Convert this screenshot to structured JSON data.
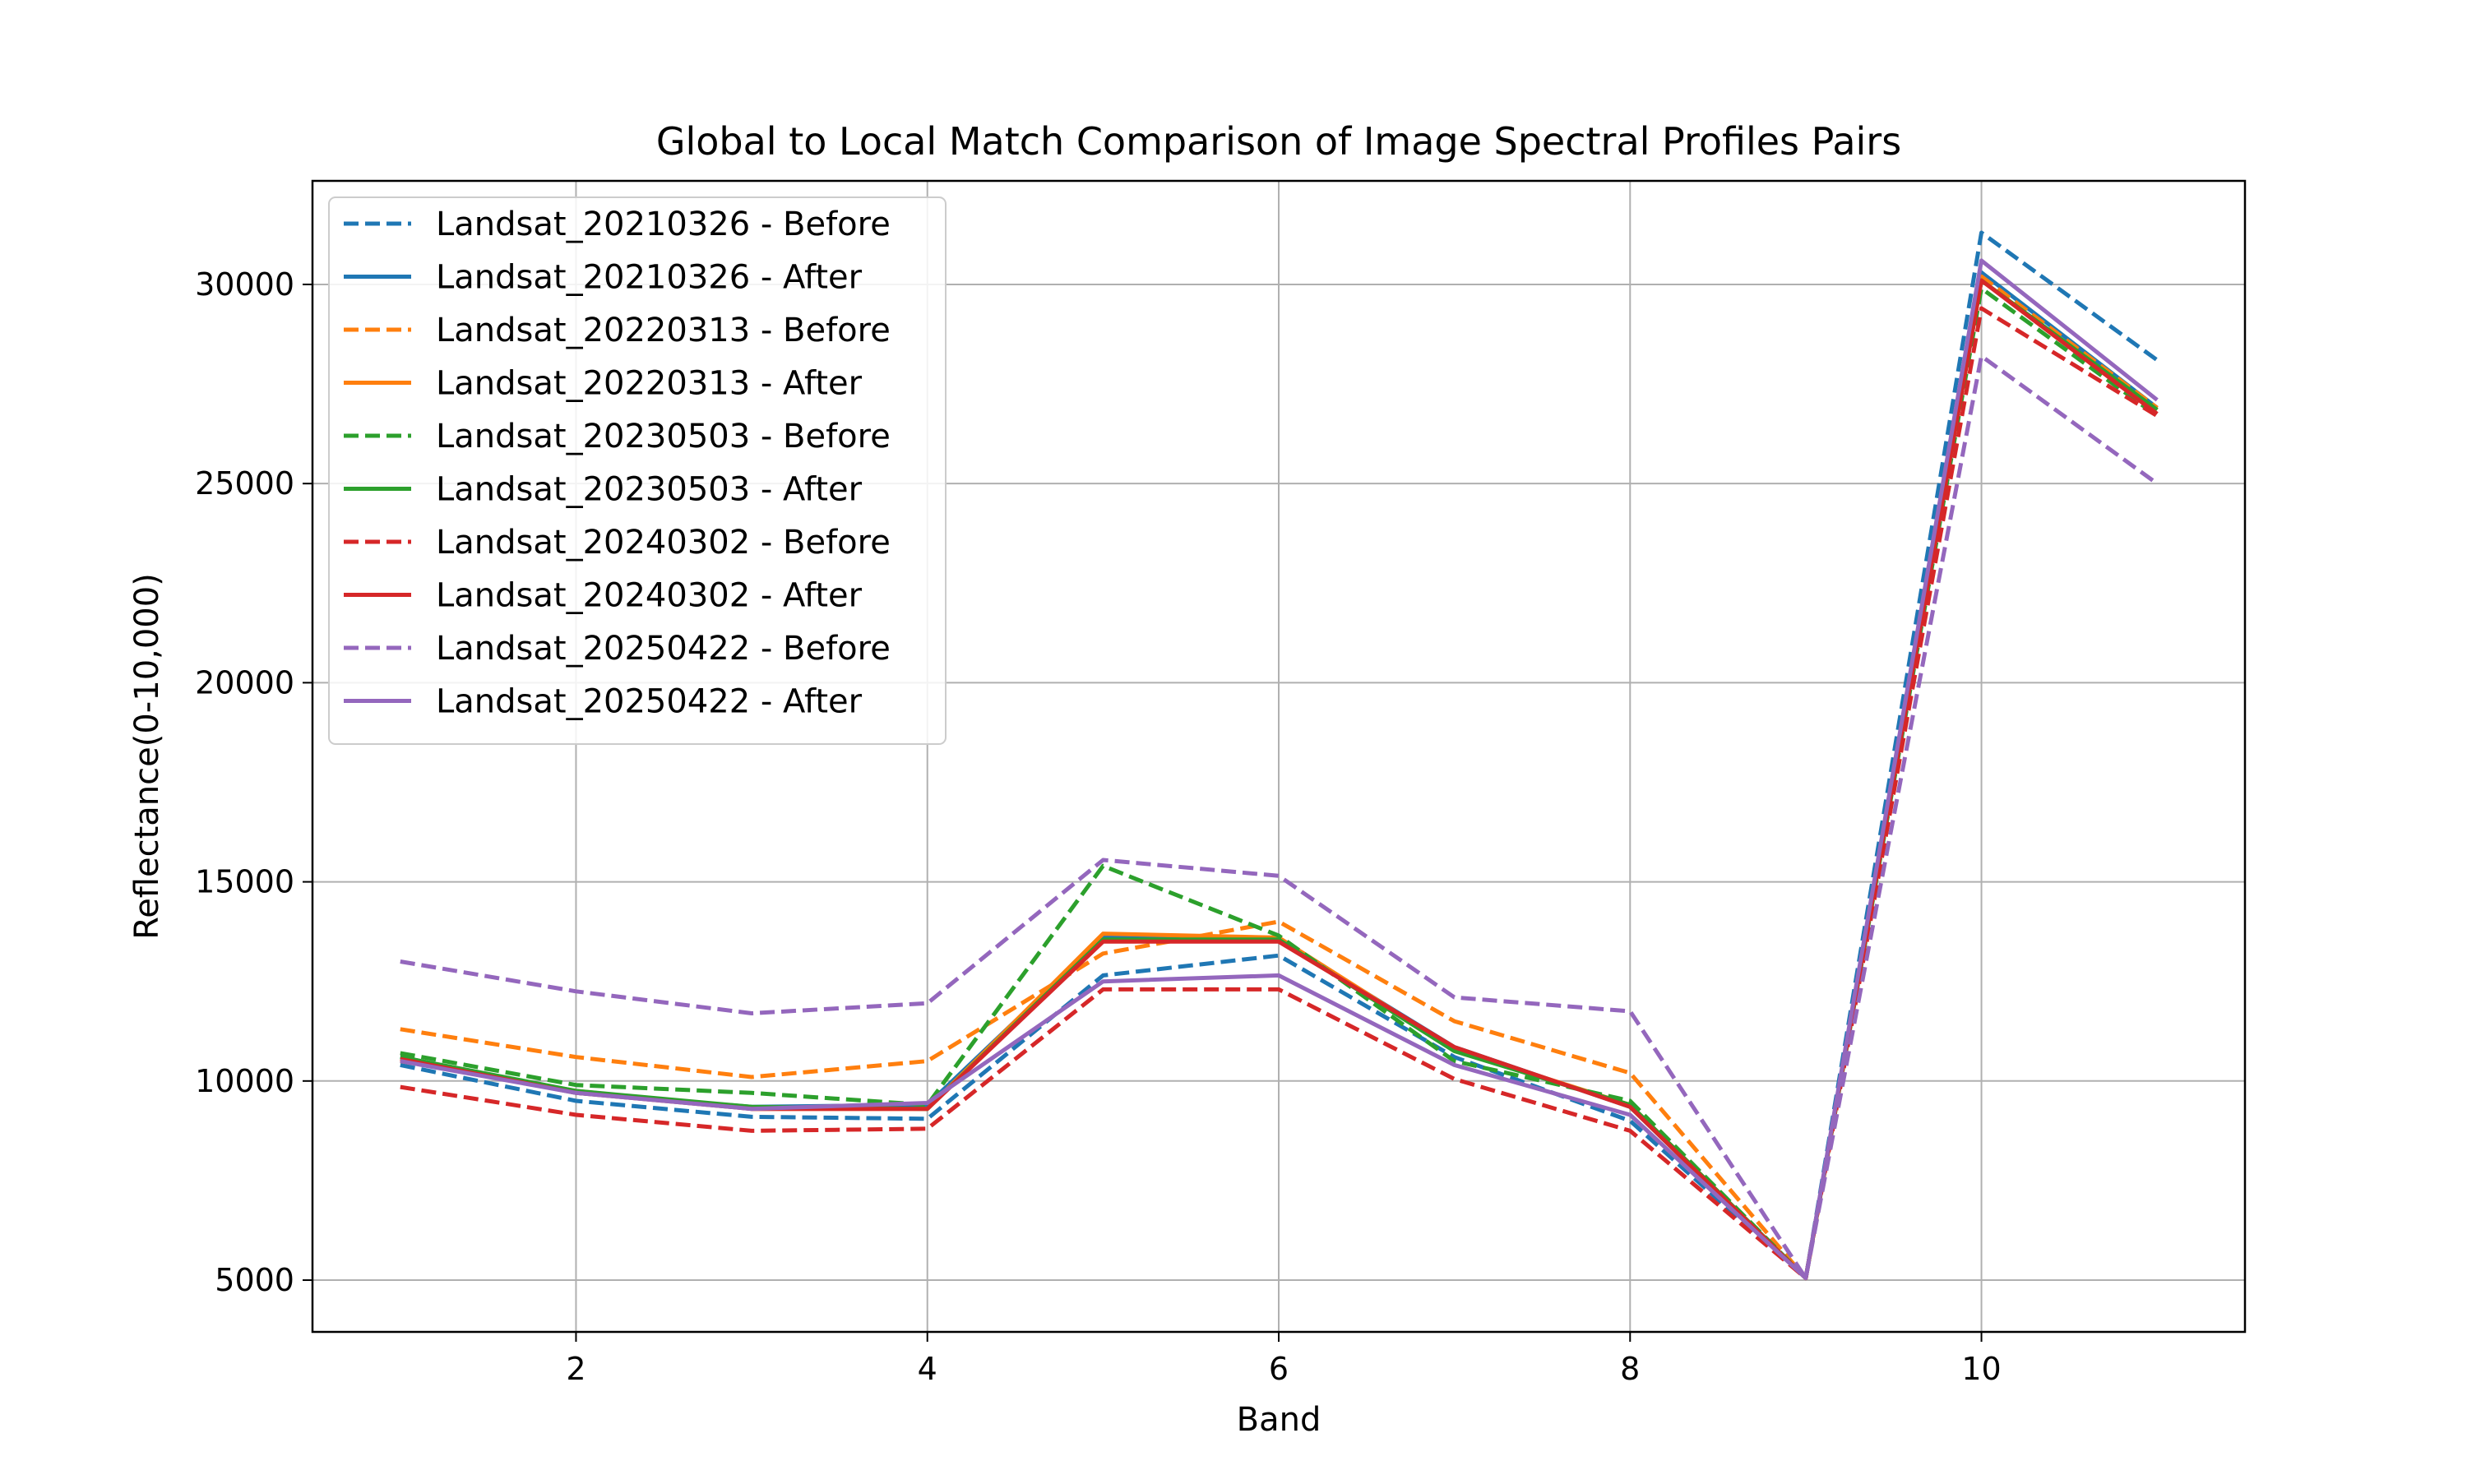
{
  "chart_data": {
    "type": "line",
    "title": "Global to Local Match Comparison of Image Spectral Profiles Pairs",
    "xlabel": "Band",
    "ylabel": "Reflectance(0-10,000)",
    "x": [
      1,
      2,
      3,
      4,
      5,
      6,
      7,
      8,
      9,
      10,
      11
    ],
    "xlim": [
      0.5,
      11.5
    ],
    "ylim": [
      3700,
      32600
    ],
    "xticks": [
      2,
      4,
      6,
      8,
      10
    ],
    "yticks": [
      5000,
      10000,
      15000,
      20000,
      25000,
      30000
    ],
    "grid": true,
    "legend_position": "upper-left",
    "series": [
      {
        "name": "Landsat_20210326 - Before",
        "color": "#1f77b4",
        "style": "dashed",
        "values": [
          10400,
          9500,
          9100,
          9050,
          12650,
          13150,
          10600,
          9000,
          5050,
          31300,
          28100
        ]
      },
      {
        "name": "Landsat_20210326 - After",
        "color": "#1f77b4",
        "style": "solid",
        "values": [
          10600,
          9700,
          9350,
          9400,
          13600,
          13550,
          10850,
          9350,
          5050,
          30300,
          26900
        ]
      },
      {
        "name": "Landsat_20220313 - Before",
        "color": "#ff7f0e",
        "style": "dashed",
        "values": [
          11300,
          10600,
          10100,
          10500,
          13200,
          14000,
          11500,
          10200,
          5050,
          30200,
          26900
        ]
      },
      {
        "name": "Landsat_20220313 - After",
        "color": "#ff7f0e",
        "style": "solid",
        "values": [
          10500,
          9750,
          9300,
          9300,
          13700,
          13600,
          10800,
          9400,
          5050,
          30100,
          26850
        ]
      },
      {
        "name": "Landsat_20230503 - Before",
        "color": "#2ca02c",
        "style": "dashed",
        "values": [
          10700,
          9900,
          9700,
          9400,
          15400,
          13650,
          10500,
          9500,
          5050,
          29900,
          26700
        ]
      },
      {
        "name": "Landsat_20230503 - After",
        "color": "#2ca02c",
        "style": "solid",
        "values": [
          10600,
          9750,
          9350,
          9300,
          13550,
          13550,
          10750,
          9400,
          5050,
          30100,
          26850
        ]
      },
      {
        "name": "Landsat_20240302 - Before",
        "color": "#d62728",
        "style": "dashed",
        "values": [
          9850,
          9150,
          8750,
          8800,
          12300,
          12300,
          10050,
          8750,
          5050,
          29400,
          26700
        ]
      },
      {
        "name": "Landsat_20240302 - After",
        "color": "#d62728",
        "style": "solid",
        "values": [
          10550,
          9700,
          9300,
          9300,
          13500,
          13500,
          10850,
          9350,
          5050,
          30100,
          26750
        ]
      },
      {
        "name": "Landsat_20250422 - Before",
        "color": "#9467bd",
        "style": "dashed",
        "values": [
          13000,
          12250,
          11700,
          11950,
          15550,
          15150,
          12100,
          11750,
          5050,
          28200,
          25000
        ]
      },
      {
        "name": "Landsat_20250422 - After",
        "color": "#9467bd",
        "style": "solid",
        "values": [
          10500,
          9700,
          9300,
          9450,
          12500,
          12650,
          10400,
          9150,
          5050,
          30600,
          27100
        ]
      }
    ]
  }
}
